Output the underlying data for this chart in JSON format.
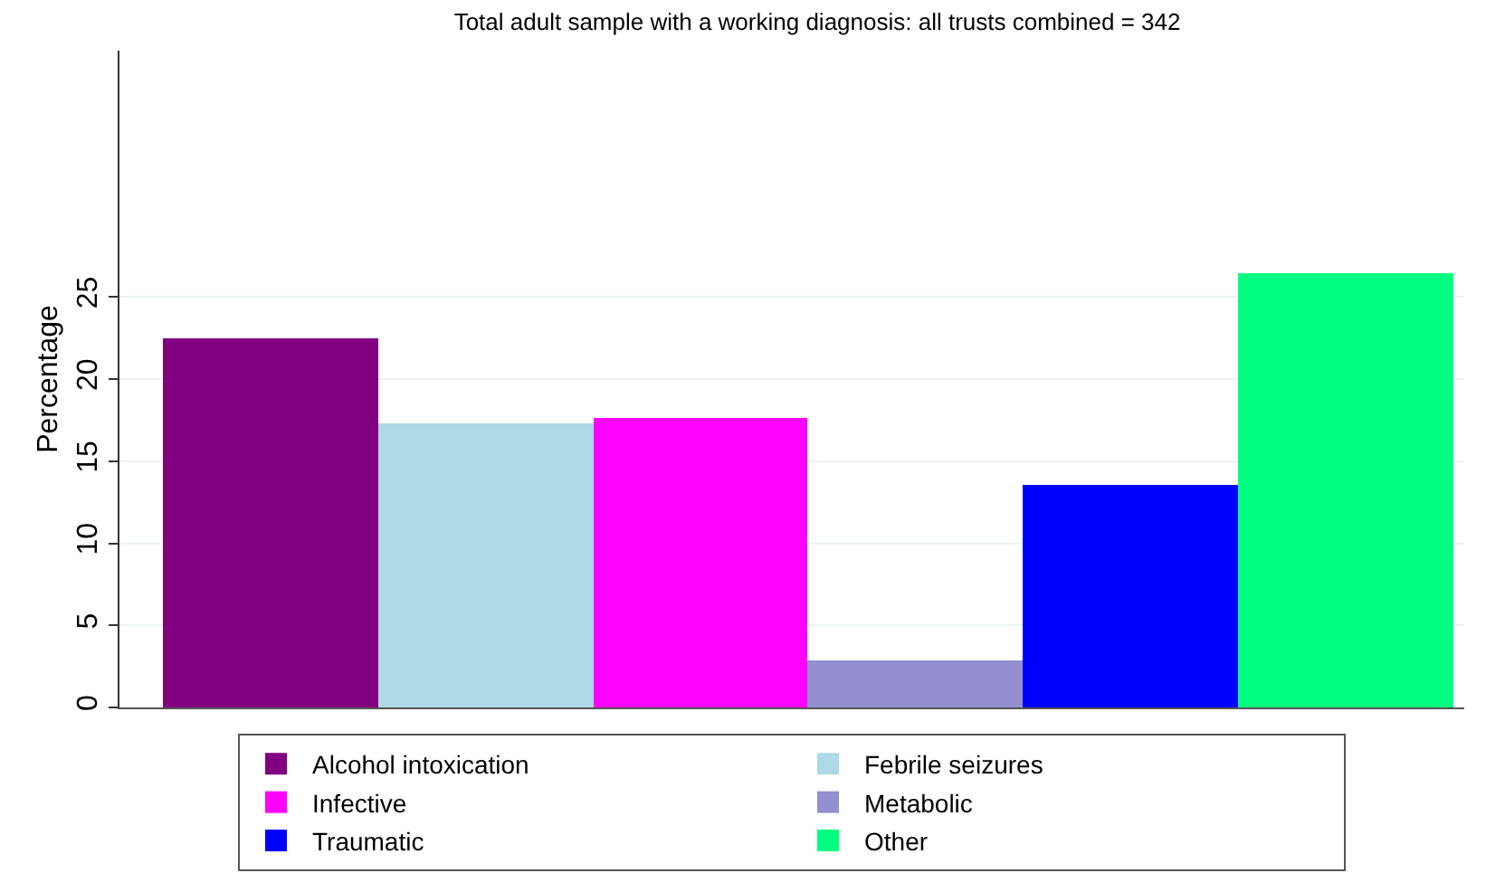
{
  "chart_data": {
    "type": "bar",
    "title": "Total adult sample with a working diagnosis: all trusts combined = 342",
    "ylabel": "Percentage",
    "categories": [
      null,
      null,
      null,
      null,
      null,
      null
    ],
    "series": [
      {
        "name": "Alcohol intoxication",
        "color": "#800080",
        "values": [
          22.5,
          null,
          null,
          null,
          null,
          null
        ]
      },
      {
        "name": "Febrile seizures",
        "color": "#add8e6",
        "values": [
          null,
          17.3,
          null,
          null,
          null,
          null
        ]
      },
      {
        "name": "Infective",
        "color": "#ff00ff",
        "values": [
          null,
          null,
          17.6,
          null,
          null,
          null
        ]
      },
      {
        "name": "Metabolic",
        "color": "#938fd0",
        "values": [
          null,
          null,
          null,
          2.9,
          null,
          null
        ]
      },
      {
        "name": "Traumatic",
        "color": "#0000ff",
        "values": [
          null,
          null,
          null,
          null,
          13.5,
          null
        ]
      },
      {
        "name": "Other",
        "color": "#00ff80",
        "values": [
          null,
          null,
          null,
          null,
          null,
          26.4
        ]
      }
    ],
    "ylim": [
      0,
      40
    ],
    "yticks": [
      0,
      5,
      10,
      15,
      20,
      25
    ],
    "grid": "y",
    "legend": "bottom",
    "tick_labels": "y"
  }
}
